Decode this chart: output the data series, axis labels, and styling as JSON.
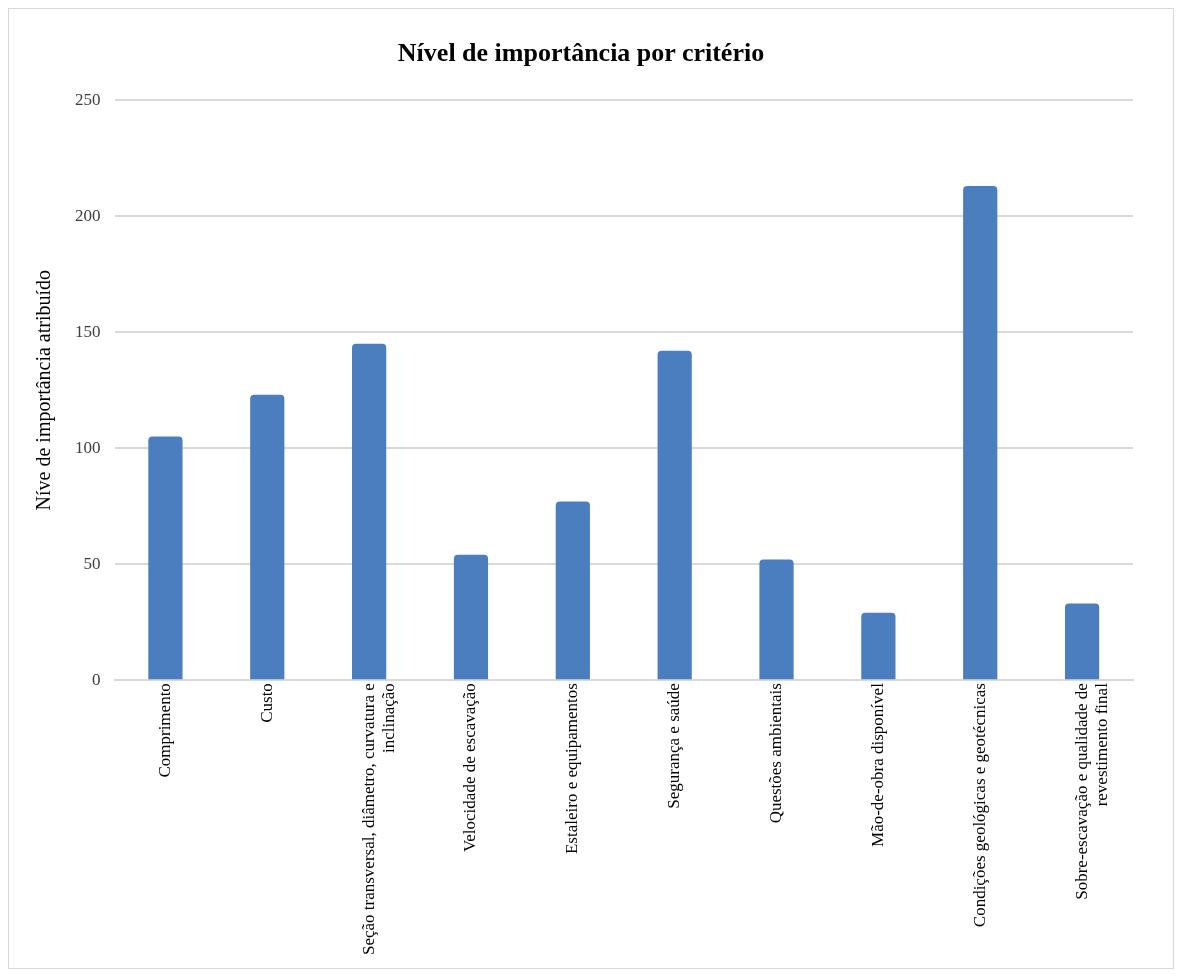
{
  "chart_data": {
    "type": "bar",
    "title": "Nível de importância por critério",
    "ylabel": "Níve de importância atribuído",
    "categories": [
      "Comprimento",
      "Custo",
      "Seção transversal, diâmetro, curvatura e inclinação",
      "Velocidade de escavação",
      "Estaleiro e equipamentos",
      "Segurança e saúde",
      "Questões ambientais",
      "Mão-de-obra disponível",
      "Condições geológicas e geotécnicas",
      "Sobre-escavação e qualidade de revestimento final"
    ],
    "values": [
      105,
      123,
      145,
      54,
      77,
      142,
      52,
      29,
      213,
      33
    ],
    "color": "#4a7ebf",
    "ylim": [
      0,
      250
    ],
    "yticks": [
      0,
      50,
      100,
      150,
      200,
      250
    ],
    "grid": "y",
    "legend": false
  }
}
